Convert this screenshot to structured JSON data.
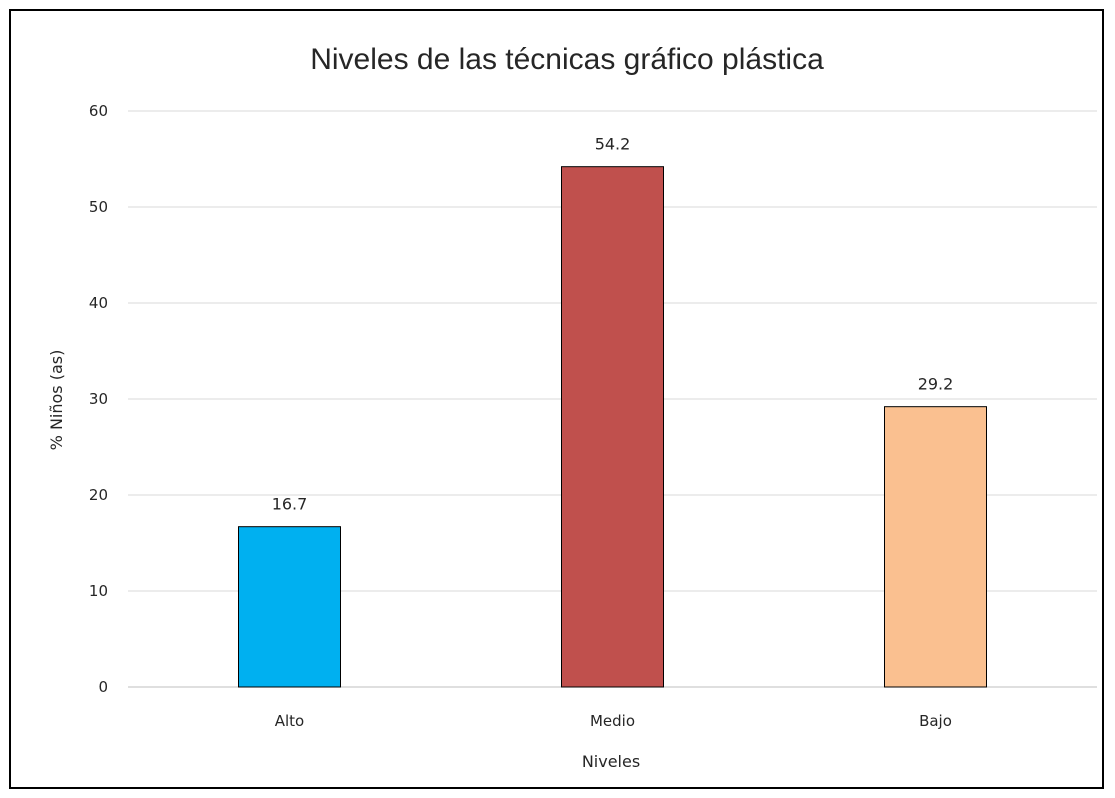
{
  "chart_data": {
    "type": "bar",
    "title": "Niveles de las técnicas gráfico plástica",
    "xlabel": "Niveles",
    "ylabel": "% Niños (as)",
    "categories": [
      "Alto",
      "Medio",
      "Bajo"
    ],
    "values": [
      16.7,
      54.2,
      29.2
    ],
    "data_labels": [
      "16.7",
      "54.2",
      "29.2"
    ],
    "colors": [
      "#00B0F0",
      "#C0504D",
      "#FAC090"
    ],
    "ylim": [
      0,
      60
    ],
    "yticks": [
      0,
      10,
      20,
      30,
      40,
      50,
      60
    ],
    "ytick_labels": [
      "0",
      "10",
      "20",
      "30",
      "40",
      "50",
      "60"
    ],
    "grid": true,
    "legend": "none"
  }
}
